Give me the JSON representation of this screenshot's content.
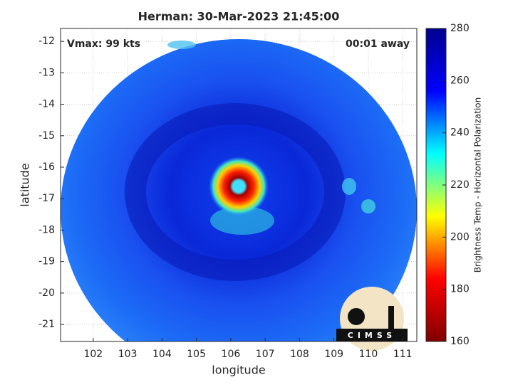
{
  "chart_data": {
    "type": "image",
    "title": "Herman: 30-Mar-2023 21:45:00",
    "xlabel": "longitude",
    "ylabel": "latitude",
    "annotations": [
      "Vmax: 99 kts",
      "00:01 away"
    ],
    "logo_text": "CIMSS",
    "xlim": [
      101.05,
      111.41
    ],
    "xticks": [
      102,
      103,
      104,
      105,
      106,
      107,
      108,
      109,
      110,
      111
    ],
    "ylim": [
      -21.54,
      -11.59
    ],
    "yticks": [
      -12,
      -13,
      -14,
      -15,
      -16,
      -17,
      -18,
      -19,
      -20,
      -21
    ],
    "grid": true,
    "colorbar": {
      "label": "Brightness Temp - Horizontal Polarization",
      "lim": [
        160,
        280
      ],
      "ticks": [
        160,
        180,
        200,
        220,
        240,
        260,
        280
      ],
      "colors": [
        "#800000",
        "#ff0000",
        "#ffff00",
        "#00ffff",
        "#0000ff",
        "#00008f"
      ]
    }
  }
}
